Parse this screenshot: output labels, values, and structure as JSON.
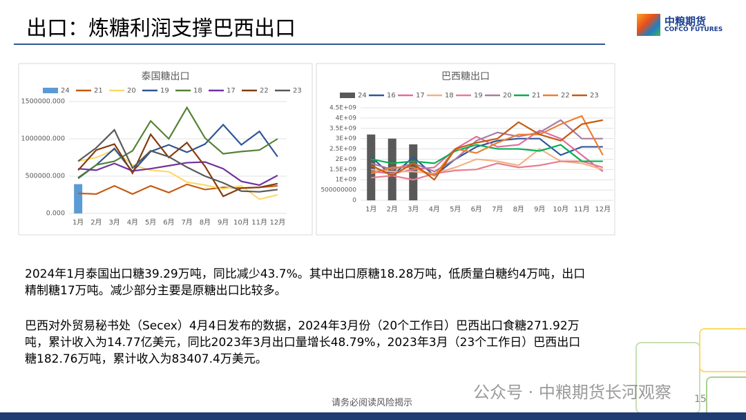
{
  "title": "出口：炼糖利润支撑巴西出口",
  "logo": {
    "name": "中粮期货",
    "name_en": "COFCO FUTURES"
  },
  "chart_data": [
    {
      "type": "line",
      "title": "泰国糖出口",
      "categories": [
        "1月",
        "2月",
        "3月",
        "4月",
        "5月",
        "6月",
        "7月",
        "8月",
        "9月",
        "10月",
        "11月",
        "12月"
      ],
      "ylim": [
        0,
        1500000
      ],
      "yticks": [
        {
          "value": 0,
          "label": "0.000"
        },
        {
          "value": 500000,
          "label": "500000.000"
        },
        {
          "value": 1000000,
          "label": "1000000.000"
        },
        {
          "value": 1500000,
          "label": "1500000.000"
        }
      ],
      "grid": true,
      "series": [
        {
          "name": "24",
          "type": "bar",
          "color": "#5b9bd5",
          "values": [
            392900,
            null,
            null,
            null,
            null,
            null,
            null,
            null,
            null,
            null,
            null,
            null
          ]
        },
        {
          "name": "21",
          "color": "#c55a11",
          "values": [
            270000,
            260000,
            370000,
            260000,
            370000,
            280000,
            390000,
            320000,
            350000,
            340000,
            350000,
            370000
          ]
        },
        {
          "name": "20",
          "color": "#ffd966",
          "values": [
            700000,
            750000,
            850000,
            650000,
            580000,
            560000,
            420000,
            380000,
            330000,
            370000,
            190000,
            250000
          ]
        },
        {
          "name": "19",
          "color": "#2f5597",
          "values": [
            470000,
            650000,
            870000,
            560000,
            830000,
            920000,
            820000,
            930000,
            1190000,
            920000,
            1100000,
            760000
          ]
        },
        {
          "name": "18",
          "color": "#548235",
          "values": [
            480000,
            650000,
            700000,
            840000,
            1240000,
            1000000,
            1420000,
            1010000,
            800000,
            830000,
            850000,
            1000000
          ]
        },
        {
          "name": "17",
          "color": "#7030a0",
          "values": [
            600000,
            580000,
            670000,
            570000,
            600000,
            640000,
            680000,
            690000,
            600000,
            430000,
            380000,
            510000
          ]
        },
        {
          "name": "22",
          "color": "#843c0c",
          "values": [
            580000,
            850000,
            930000,
            540000,
            1060000,
            750000,
            950000,
            630000,
            230000,
            340000,
            350000,
            400000
          ]
        },
        {
          "name": "23",
          "color": "#595959",
          "values": [
            700000,
            880000,
            1120000,
            610000,
            840000,
            760000,
            620000,
            500000,
            410000,
            300000,
            290000,
            320000
          ]
        }
      ]
    },
    {
      "type": "line",
      "title": "巴西糖出口",
      "categories": [
        "1月",
        "2月",
        "3月",
        "4月",
        "5月",
        "6月",
        "7月",
        "8月",
        "9月",
        "10月",
        "11月",
        "12月"
      ],
      "ylim": [
        0,
        4500000000
      ],
      "yticks": [
        0,
        500000000,
        {
          "value": 1000000000,
          "label": "1E+09"
        },
        {
          "value": 1500000000,
          "label": "1.5E+09"
        },
        {
          "value": 2000000000,
          "label": "2E+09"
        },
        {
          "value": 2500000000,
          "label": "2.5E+09"
        },
        {
          "value": 3000000000,
          "label": "3E+09"
        },
        {
          "value": 3500000000,
          "label": "3.5E+09"
        },
        {
          "value": 4000000000,
          "label": "4E+09"
        },
        {
          "value": 4500000000,
          "label": "4.5E+09"
        }
      ],
      "grid": true,
      "series": [
        {
          "name": "24",
          "type": "bar",
          "color": "#595959",
          "values": [
            3200000000,
            3000000000,
            2720000000,
            null,
            null,
            null,
            null,
            null,
            null,
            null,
            null,
            null
          ]
        },
        {
          "name": "16",
          "color": "#2f5597",
          "values": [
            2100000000,
            1200000000,
            2100000000,
            1200000000,
            2000000000,
            2600000000,
            2900000000,
            3000000000,
            3000000000,
            2200000000,
            2600000000,
            2600000000
          ]
        },
        {
          "name": "17",
          "color": "#e06c9f",
          "values": [
            1400000000,
            1300000000,
            1500000000,
            1600000000,
            2500000000,
            3100000000,
            2600000000,
            2700000000,
            3400000000,
            3000000000,
            2200000000,
            1400000000
          ]
        },
        {
          "name": "18",
          "color": "#f4b183",
          "values": [
            1500000000,
            1400000000,
            1400000000,
            1300000000,
            1600000000,
            2000000000,
            1900000000,
            1700000000,
            2500000000,
            1900000000,
            1800000000,
            1500000000
          ]
        },
        {
          "name": "19",
          "color": "#e87c8f",
          "values": [
            1100000000,
            1200000000,
            1000000000,
            1300000000,
            1450000000,
            1500000000,
            1800000000,
            1600000000,
            1700000000,
            1900000000,
            1900000000,
            1600000000
          ]
        },
        {
          "name": "20",
          "color": "#a97a9f",
          "values": [
            1800000000,
            1500000000,
            1800000000,
            1400000000,
            2000000000,
            2900000000,
            3300000000,
            3100000000,
            3300000000,
            3900000000,
            3000000000,
            3000000000
          ]
        },
        {
          "name": "21",
          "color": "#00b050",
          "values": [
            2000000000,
            1800000000,
            1900000000,
            1800000000,
            2400000000,
            2700000000,
            2500000000,
            2500000000,
            2400000000,
            2700000000,
            1900000000,
            1900000000
          ]
        },
        {
          "name": "22",
          "color": "#ed7d31",
          "values": [
            1300000000,
            1600000000,
            1600000000,
            1200000000,
            2500000000,
            2300000000,
            2800000000,
            3200000000,
            3200000000,
            3700000000,
            4100000000,
            2200000000
          ]
        },
        {
          "name": "23",
          "color": "#c55a11",
          "values": [
            1700000000,
            1200000000,
            1800000000,
            1000000000,
            2500000000,
            2800000000,
            3000000000,
            3800000000,
            3200000000,
            2900000000,
            3700000000,
            3900000000
          ]
        }
      ]
    }
  ],
  "paragraphs": [
    "2024年1月泰国出口糖39.29万吨，同比减少43.7%。其中出口原糖18.28万吨，低质量白糖约4万吨，出口精制糖17万吨。减少部分主要是原糖出口比较多。",
    "巴西对外贸易秘书处（Secex）4月4日发布的数据，2024年3月份（20个工作日）巴西出口食糖271.92万吨，累计收入为14.77亿美元，同比2023年3月出口量增长48.79%，2023年3月（23个工作日）巴西出口糖182.76万吨，累计收入为83407.4万美元。"
  ],
  "footer": "请务必阅读风险揭示",
  "page_number": "15",
  "watermark": "公众号 · 中粮期货长河观察"
}
